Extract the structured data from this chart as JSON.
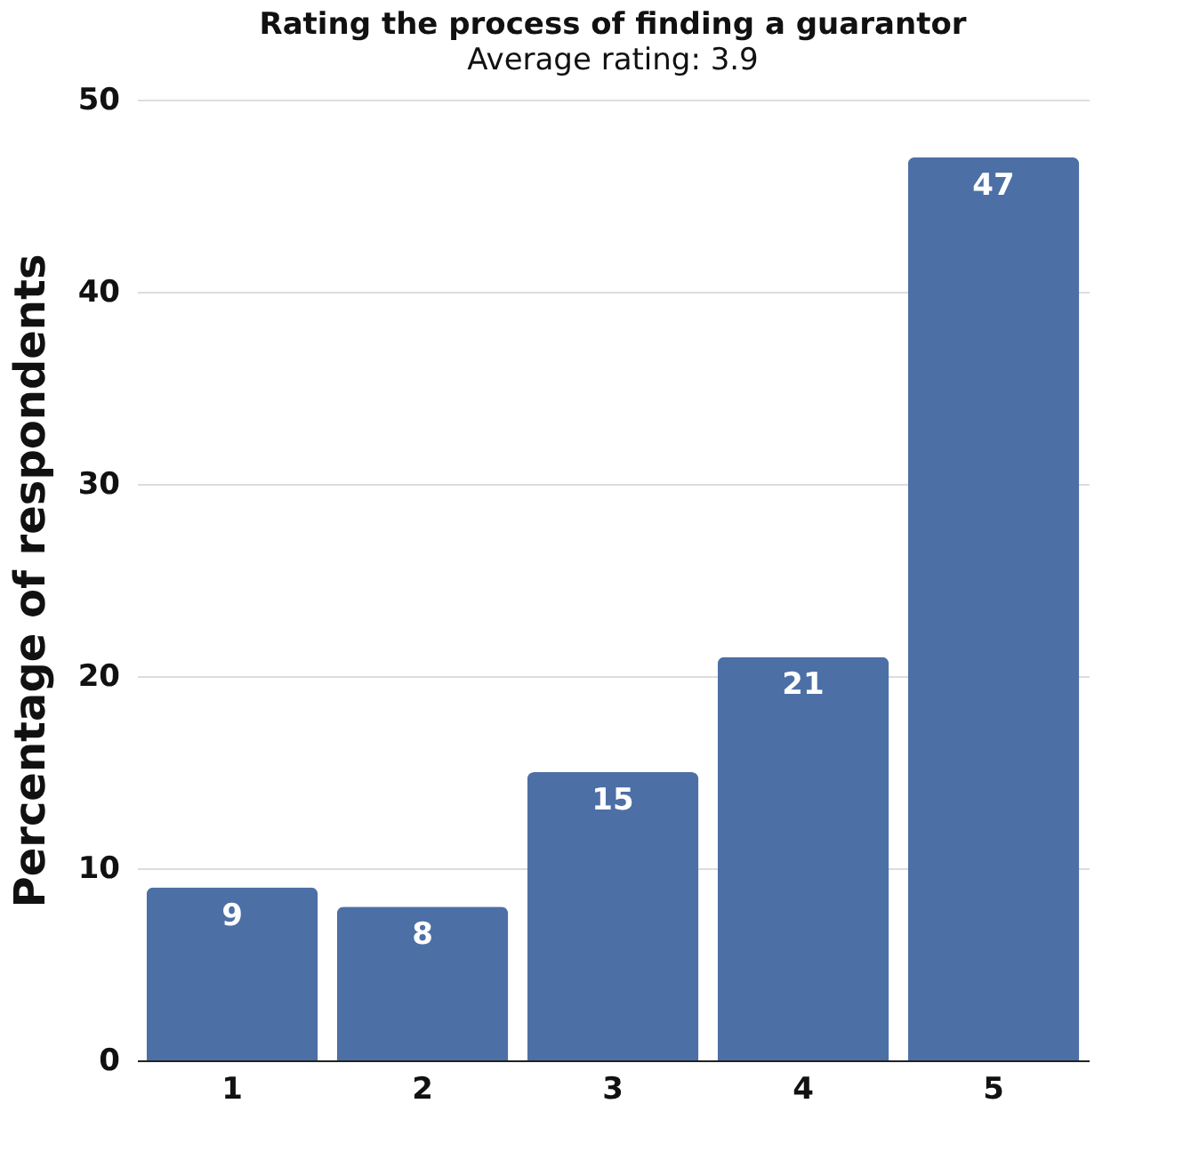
{
  "chart_data": {
    "type": "bar",
    "title": "Rating the process of finding a guarantor",
    "subtitle": "Average rating: 3.9",
    "ylabel": "Percentage of respondents",
    "categories": [
      "1",
      "2",
      "3",
      "4",
      "5"
    ],
    "values": [
      9,
      8,
      15,
      21,
      47
    ],
    "color": "#4c6fa6",
    "ylim": [
      0,
      50
    ],
    "yticks": [
      0,
      10,
      20,
      30,
      40,
      50
    ],
    "grid": "y",
    "data_labels": true
  }
}
